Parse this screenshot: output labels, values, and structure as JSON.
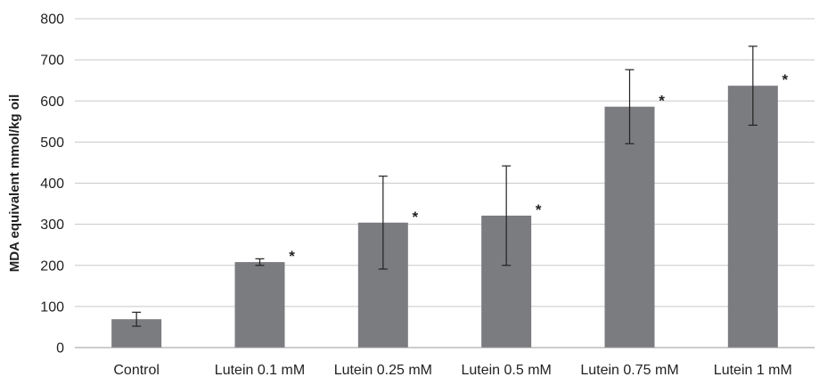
{
  "chart_data": {
    "type": "bar",
    "title": "",
    "xlabel": "",
    "ylabel": "MDA equivalent mmol/kg oil",
    "ylim": [
      0,
      800
    ],
    "yticks": [
      0,
      100,
      200,
      300,
      400,
      500,
      600,
      700,
      800
    ],
    "grid": true,
    "bar_color": "#7b7c80",
    "categories": [
      "Control",
      "Lutein 0.1 mM",
      "Lutein 0.25 mM",
      "Lutein 0.5 mM",
      "Lutein 0.75 mM",
      "Lutein 1 mM"
    ],
    "values": [
      69,
      208,
      304,
      321,
      586,
      637
    ],
    "error": [
      17,
      8,
      113,
      121,
      90,
      96
    ],
    "significance": [
      "",
      "*",
      "*",
      "*",
      "*",
      "*"
    ]
  }
}
